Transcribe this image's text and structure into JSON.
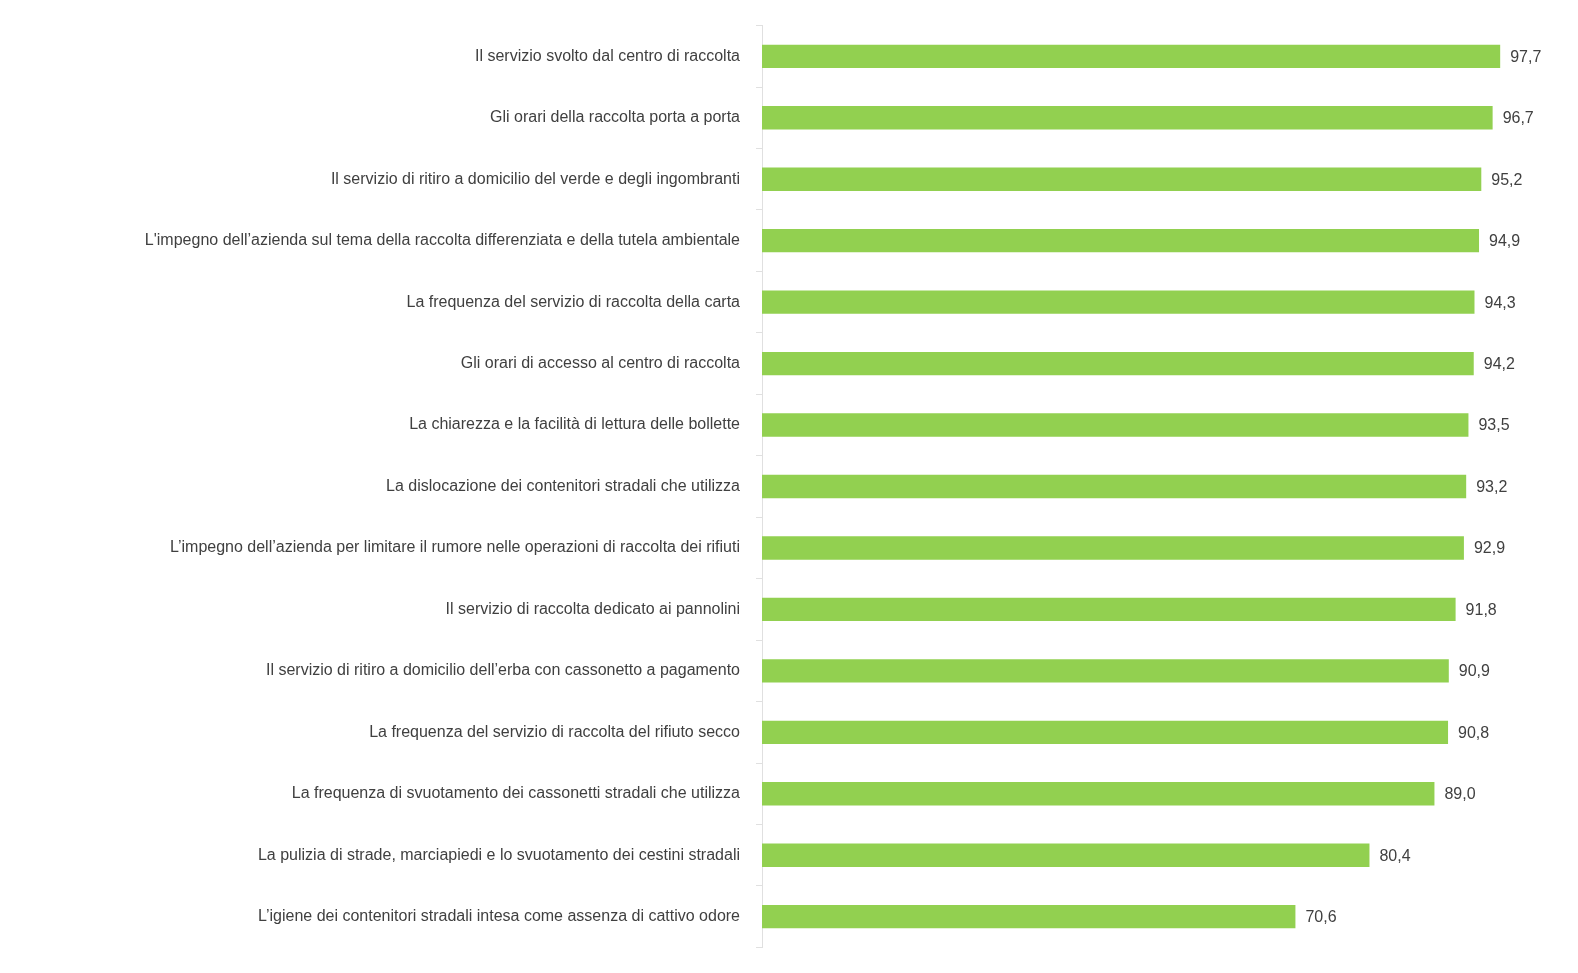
{
  "chart_data": {
    "type": "bar",
    "orientation": "horizontal",
    "color": "#92d050",
    "categories": [
      "Il servizio svolto dal centro di raccolta",
      "Gli orari della raccolta porta a porta",
      "Il servizio di ritiro a domicilio del verde e degli ingombranti",
      "L'impegno dell’azienda sul tema della raccolta differenziata e della tutela ambientale",
      "La frequenza del servizio di raccolta della carta",
      "Gli orari di accesso al centro di raccolta",
      "La chiarezza e la facilità di lettura delle bollette",
      "La dislocazione dei contenitori stradali che utilizza",
      "L’impegno dell’azienda per limitare il rumore nelle operazioni di raccolta dei rifiuti",
      "Il servizio di raccolta dedicato ai pannolini",
      "Il servizio di ritiro a domicilio dell’erba con cassonetto a pagamento",
      "La frequenza del servizio di raccolta del rifiuto secco",
      "La frequenza di svuotamento dei cassonetti stradali che utilizza",
      "La pulizia di strade, marciapiedi e lo svuotamento dei cestini stradali",
      "L’igiene dei contenitori stradali intesa come assenza di cattivo odore"
    ],
    "values": [
      97.7,
      96.7,
      95.2,
      94.9,
      94.3,
      94.2,
      93.5,
      93.2,
      92.9,
      91.8,
      90.9,
      90.8,
      89.0,
      80.4,
      70.6
    ],
    "value_labels": [
      "97,7",
      "96,7",
      "95,2",
      "94,9",
      "94,3",
      "94,2",
      "93,5",
      "93,2",
      "92,9",
      "91,8",
      "90,9",
      "90,8",
      "89,0",
      "80,4",
      "70,6"
    ]
  }
}
